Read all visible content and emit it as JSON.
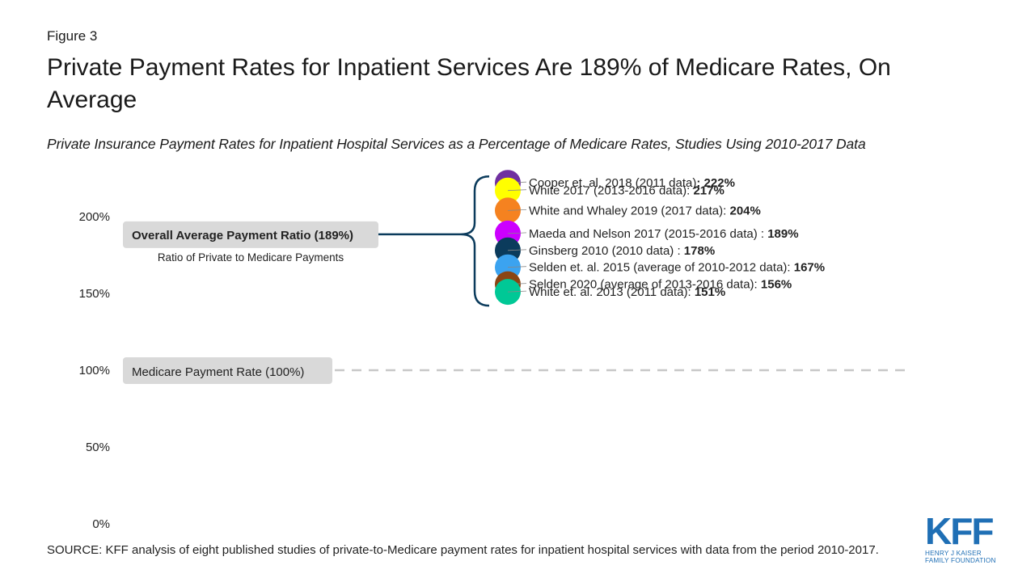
{
  "figure_label": "Figure 3",
  "title": "Private Payment Rates for Inpatient Services Are 189% of  Medicare Rates, On Average",
  "subtitle": "Private Insurance Payment Rates for Inpatient Hospital Services as a Percentage of Medicare Rates, Studies Using 2010-2017 Data",
  "source": "SOURCE: KFF analysis of eight published studies of private-to-Medicare payment rates for inpatient hospital services with data from the period 2010-2017.",
  "logo": {
    "mark": "KFF",
    "line1": "HENRY J KAISER",
    "line2": "FAMILY FOUNDATION"
  },
  "colors": {
    "bracket": "#0b3b5c",
    "label_bg": "#d9d9d9",
    "reference_line": "#c8c8c8"
  },
  "chart_data": {
    "type": "scatter",
    "ylim": [
      0,
      200
    ],
    "y_ticks": [
      "0%",
      "50%",
      "100%",
      "150%",
      "200%"
    ],
    "tick_values": [
      0,
      50,
      100,
      150,
      200
    ],
    "series": [
      {
        "label": "Cooper et. al. 2018 (2011 data)",
        "value_label": ": 222%",
        "value": 222,
        "color": "#7030a0"
      },
      {
        "label": "White 2017 (2013-2016 data): ",
        "value_label": "217%",
        "value": 217,
        "color": "#ffff00"
      },
      {
        "label": "White and Whaley 2019 (2017 data): ",
        "value_label": "204%",
        "value": 204,
        "color": "#f58220"
      },
      {
        "label": "Maeda and Nelson 2017 (2015-2016 data) : ",
        "value_label": "189%",
        "value": 189,
        "color": "#cc00ff"
      },
      {
        "label": "Ginsberg 2010 (2010 data) : ",
        "value_label": "178%",
        "value": 178,
        "color": "#0b3b5c"
      },
      {
        "label": "Selden et. al. 2015 (average of 2010-2012 data): ",
        "value_label": "167%",
        "value": 167,
        "color": "#3ba3f0"
      },
      {
        "label": "Selden 2020 (average of 2013-2016 data): ",
        "value_label": "156%",
        "value": 156,
        "color": "#8b4513"
      },
      {
        "label": "White et. al. 2013 (2011 data): ",
        "value_label": "151%",
        "value": 151,
        "color": "#00c896"
      }
    ],
    "average": {
      "label": "Overall Average Payment Ratio (189%)",
      "sublabel": "Ratio of Private to Medicare Payments",
      "value": 189
    },
    "reference": {
      "label": "Medicare Payment Rate (100%)",
      "value": 100,
      "style": "dashed"
    }
  }
}
